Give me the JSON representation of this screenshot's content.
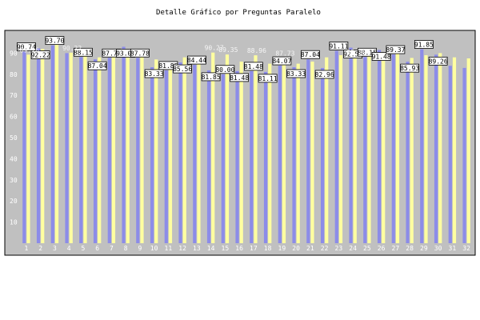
{
  "colors": {
    "plot_bg": "#c0c0c0",
    "series_a": "#8c8ce8",
    "series_b": "#ffffa0",
    "frame": "#000000",
    "label_box": "#ffffff"
  },
  "chart_data": {
    "type": "bar",
    "title": "Detalle Gráfico por Preguntas Paralelo",
    "xlabel": "",
    "ylabel": "",
    "ylim": [
      0,
      100
    ],
    "yticks": [
      10,
      20,
      30,
      40,
      50,
      60,
      70,
      80,
      90
    ],
    "grid": false,
    "legend": "none",
    "categories": [
      "1",
      "2",
      "3",
      "4",
      "5",
      "6",
      "7",
      "8",
      "9",
      "10",
      "11",
      "12",
      "13",
      "14",
      "15",
      "16",
      "17",
      "18",
      "19",
      "20",
      "21",
      "22",
      "23",
      "24",
      "25",
      "26",
      "27",
      "28",
      "29",
      "30",
      "31",
      "32"
    ],
    "series": [
      {
        "values": [
          90.74,
          92.22,
          93.7,
          90.0,
          88.15,
          87.04,
          87.78,
          93.0,
          87.78,
          83.33,
          81.85,
          85.56,
          84.44,
          81.85,
          80.0,
          81.48,
          81.48,
          81.11,
          84.07,
          83.33,
          87.04,
          82.96,
          91.11,
          92.59,
          88.15,
          91.48,
          89.37,
          85.93,
          91.85,
          89.26,
          84.0,
          83.0
        ],
        "labels": [
          "90.74",
          "92.22",
          "93.70",
          "",
          "88.15",
          "87.04",
          "87.78",
          "93.00",
          "87.78",
          "83.33",
          "81.85",
          "85.56",
          "84.44",
          "81.85",
          "80.00",
          "81.48",
          "81.48",
          "81.11",
          "84.07",
          "83.33",
          "87.04",
          "82.96",
          "91.11",
          "92.59",
          "88.15",
          "91.48",
          "89.37",
          "85.93",
          "91.85",
          "89.26",
          "",
          ""
        ]
      },
      {
        "values": [
          89.26,
          92.0,
          94.0,
          90.22,
          90.4,
          88.0,
          89.0,
          91.0,
          89.0,
          87.0,
          86.0,
          88.0,
          87.0,
          90.27,
          89.35,
          86.0,
          88.96,
          85.0,
          87.73,
          85.0,
          86.0,
          88.0,
          89.0,
          88.29,
          90.0,
          90.0,
          90.37,
          87.72,
          89.0,
          90.0,
          88.0,
          87.5
        ],
        "labels": [
          "89.26",
          "",
          "",
          "90.22",
          "",
          "",
          "",
          "",
          "",
          "",
          "",
          "",
          "",
          "90.27",
          "89.35",
          "",
          "88.96",
          "",
          "87.73",
          "",
          "",
          "",
          "",
          "88.29",
          "",
          "",
          "",
          "",
          "",
          "",
          "",
          ""
        ]
      }
    ]
  }
}
